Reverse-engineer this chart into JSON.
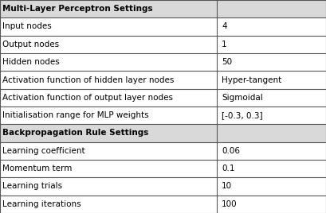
{
  "rows": [
    {
      "label": "Multi-Layer Perceptron Settings",
      "value": "",
      "header": true,
      "bg": "#d9d9d9"
    },
    {
      "label": "Input nodes",
      "value": "4",
      "header": false,
      "bg": "#ffffff"
    },
    {
      "label": "Output nodes",
      "value": "1",
      "header": false,
      "bg": "#ffffff"
    },
    {
      "label": "Hidden nodes",
      "value": "50",
      "header": false,
      "bg": "#ffffff"
    },
    {
      "label": "Activation function of hidden layer nodes",
      "value": "Hyper-tangent",
      "header": false,
      "bg": "#ffffff"
    },
    {
      "label": "Activation function of output layer nodes",
      "value": "Sigmoidal",
      "header": false,
      "bg": "#ffffff"
    },
    {
      "label": "Initialisation range for MLP weights",
      "value": "[-0.3, 0.3]",
      "header": false,
      "bg": "#ffffff"
    },
    {
      "label": "Backpropagation Rule Settings",
      "value": "",
      "header": true,
      "bg": "#d9d9d9"
    },
    {
      "label": "Learning coefficient",
      "value": "0.06",
      "header": false,
      "bg": "#ffffff"
    },
    {
      "label": "Momentum term",
      "value": "0.1",
      "header": false,
      "bg": "#ffffff"
    },
    {
      "label": "Learning trials",
      "value": "10",
      "header": false,
      "bg": "#ffffff"
    },
    {
      "label": "Learning iterations",
      "value": "100",
      "header": false,
      "bg": "#ffffff"
    }
  ],
  "col_split": 0.665,
  "border_color": "#555555",
  "header_bg": "#d9d9d9",
  "normal_bg": "#ffffff",
  "text_color": "#000000",
  "font_size": 7.5,
  "header_font_size": 7.5,
  "fig_width": 4.09,
  "fig_height": 2.68,
  "dpi": 100
}
